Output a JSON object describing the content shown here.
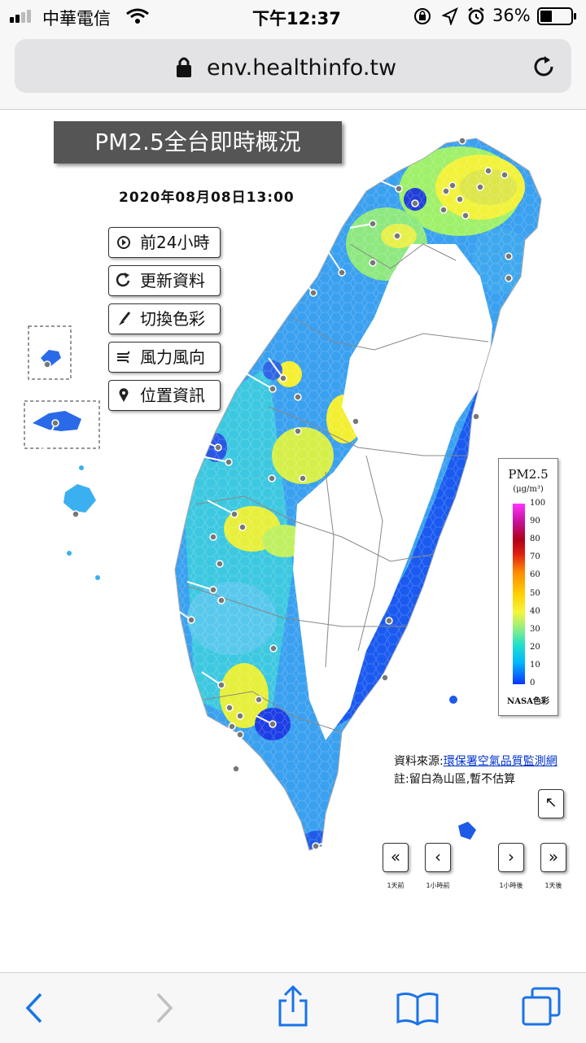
{
  "status_bar": {
    "carrier": "中華電信",
    "time": "下午12:37",
    "battery": "36%",
    "icons": [
      "signal-icon",
      "wifi-icon",
      "rotation-lock-icon",
      "location-icon",
      "alarm-icon",
      "battery-icon"
    ]
  },
  "browser": {
    "url": "env.healthinfo.tw",
    "icons": [
      "lock-icon",
      "reload-icon"
    ]
  },
  "page": {
    "title": "PM2.5全台即時概況",
    "datetime": "2020年08月08日13:00",
    "controls": [
      {
        "label": "前24小時",
        "icon": "play-icon"
      },
      {
        "label": "更新資料",
        "icon": "refresh-icon"
      },
      {
        "label": "切換色彩",
        "icon": "brush-icon"
      },
      {
        "label": "風力風向",
        "icon": "wind-icon"
      },
      {
        "label": "位置資訊",
        "icon": "location-pin-icon"
      }
    ],
    "legend": {
      "title": "PM2.5",
      "unit": "(μg/m³)",
      "ticks": [
        "100",
        "90",
        "80",
        "70",
        "60",
        "50",
        "40",
        "30",
        "20",
        "10",
        "0"
      ],
      "footer": "NASA色彩",
      "colors": {
        "low": "#0a36ff",
        "mid": "#f5f53a",
        "high": "#ff33ff"
      }
    },
    "source_prefix": "資料來源:",
    "source_link": "環保署空氣品質監測網",
    "note": "註:留白為山區,暫不估算",
    "nav": [
      {
        "symbol": "«",
        "label": "1天前"
      },
      {
        "symbol": "‹",
        "label": "1小時前"
      },
      {
        "symbol": "›",
        "label": "1小時後"
      },
      {
        "symbol": "»",
        "label": "1天後"
      }
    ],
    "expand_symbol": "↖"
  },
  "toolbar": {
    "icons": [
      "back-icon",
      "forward-icon",
      "share-icon",
      "bookmarks-icon",
      "tabs-icon"
    ]
  }
}
